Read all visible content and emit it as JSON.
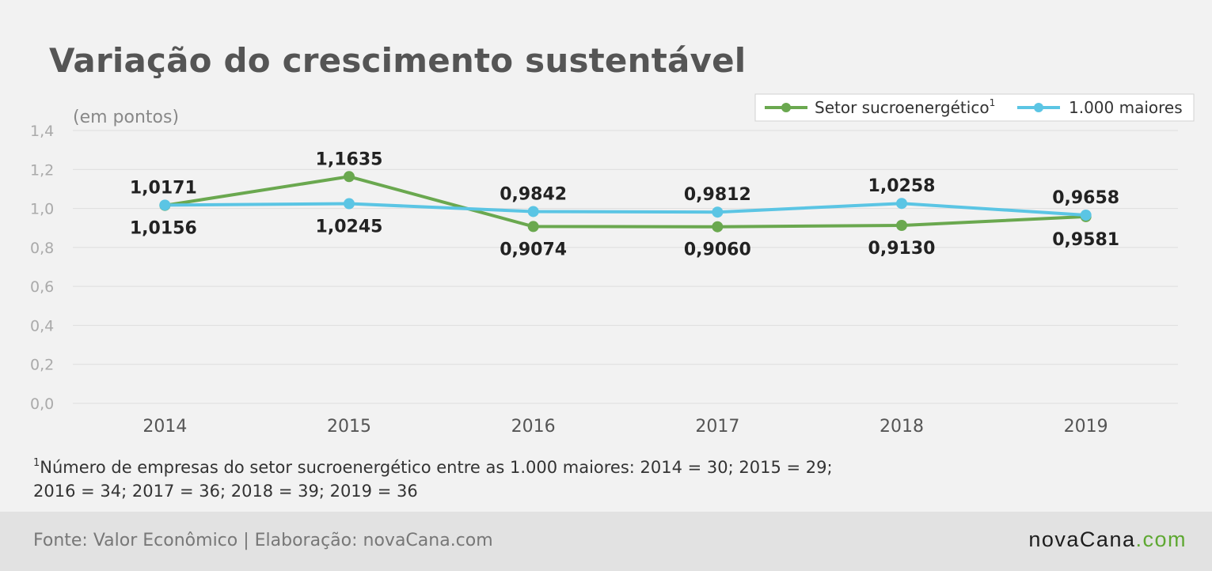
{
  "chart_data": {
    "type": "line",
    "title": "Variação do crescimento sustentável",
    "unit_label": "(em pontos)",
    "categories": [
      "2014",
      "2015",
      "2016",
      "2017",
      "2018",
      "2019"
    ],
    "y_ticks": [
      "0,0",
      "0,2",
      "0,4",
      "0,6",
      "0,8",
      "1,0",
      "1,2",
      "1,4"
    ],
    "ylim": [
      0,
      1.4
    ],
    "grid": true,
    "legend_placement": "top-right",
    "series": [
      {
        "name": "Setor sucroenergético",
        "name_sup": "1",
        "color": "#6aa84f",
        "values": [
          1.0156,
          1.1635,
          0.9074,
          0.906,
          0.913,
          0.9581
        ],
        "labels": [
          "1,0156",
          "1,1635",
          "0,9074",
          "0,9060",
          "0,9130",
          "0,9581"
        ],
        "label_pos": [
          "below",
          "above",
          "below",
          "below",
          "below",
          "below"
        ]
      },
      {
        "name": "1.000 maiores",
        "color": "#5bc5e4",
        "values": [
          1.0171,
          1.0245,
          0.9842,
          0.9812,
          1.0258,
          0.9658
        ],
        "labels": [
          "1,0171",
          "1,0245",
          "0,9842",
          "0,9812",
          "1,0258",
          "0,9658"
        ],
        "label_pos": [
          "above",
          "below",
          "above",
          "above",
          "above",
          "above"
        ]
      }
    ]
  },
  "footnote": {
    "sup": "1",
    "line1": "Número de empresas do setor sucroenergético entre as 1.000 maiores: 2014 = 30; 2015 = 29;",
    "line2": "2016 = 34; 2017 = 36; 2018 = 39; 2019 = 36"
  },
  "footer": {
    "source": "Fonte: Valor Econômico | Elaboração: novaCana.com",
    "brand_part1": "novaCana",
    "brand_part2": ".com"
  }
}
